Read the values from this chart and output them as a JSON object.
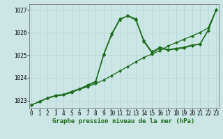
{
  "title": "Graphe pression niveau de la mer (hPa)",
  "x_ticks": [
    0,
    1,
    2,
    3,
    4,
    5,
    6,
    7,
    8,
    9,
    10,
    11,
    12,
    13,
    14,
    15,
    16,
    17,
    18,
    19,
    20,
    21,
    22,
    23
  ],
  "ylim": [
    1022.65,
    1027.25
  ],
  "yticks": [
    1023,
    1024,
    1025,
    1026,
    1027
  ],
  "xlim": [
    -0.3,
    23.3
  ],
  "bg_color": "#cce6e6",
  "grid_color": "#b0d4d4",
  "line_color": "#1a6b1a",
  "series1_y": [
    1022.8,
    1022.95,
    1023.1,
    1023.2,
    1023.25,
    1023.35,
    1023.5,
    1023.6,
    1023.75,
    1023.9,
    1024.1,
    1024.3,
    1024.5,
    1024.7,
    1024.9,
    1025.05,
    1025.2,
    1025.4,
    1025.55,
    1025.7,
    1025.85,
    1026.0,
    1026.2,
    1027.0
  ],
  "series2_y": [
    1022.8,
    1022.95,
    1023.1,
    1023.2,
    1023.25,
    1023.38,
    1023.5,
    1023.65,
    1023.82,
    1025.0,
    1025.9,
    1026.55,
    1026.75,
    1026.6,
    1025.65,
    1025.15,
    1025.35,
    1025.25,
    1025.3,
    1025.35,
    1025.45,
    1025.5,
    1026.1,
    1027.0
  ],
  "series3_y": [
    1022.8,
    1022.95,
    1023.12,
    1023.22,
    1023.27,
    1023.4,
    1023.52,
    1023.68,
    1023.85,
    1025.05,
    1025.95,
    1026.6,
    1026.72,
    1026.55,
    1025.6,
    1025.1,
    1025.3,
    1025.22,
    1025.27,
    1025.32,
    1025.42,
    1025.48,
    1026.08,
    1027.0
  ],
  "marker_size": 2.2,
  "linewidth": 0.9,
  "tick_fontsize": 5.5,
  "xlabel_fontsize": 6.5
}
